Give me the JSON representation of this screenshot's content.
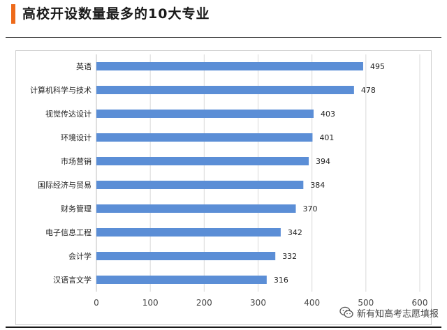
{
  "header": {
    "title": "高校开设数量最多的10大专业"
  },
  "watermark": {
    "icon": "wechat-icon",
    "text": "新有知高考志愿填报"
  },
  "colors": {
    "accent": "#ee6a1a",
    "bar": "#5b8ed6",
    "grid": "#d9d9d9"
  },
  "chart_data": {
    "type": "bar",
    "orientation": "horizontal",
    "title": "",
    "xlabel": "",
    "ylabel": "",
    "categories": [
      "英语",
      "计算机科学与技术",
      "视觉传达设计",
      "环境设计",
      "市场营销",
      "国际经济与贸易",
      "财务管理",
      "电子信息工程",
      "会计学",
      "汉语言文学"
    ],
    "values": [
      495,
      478,
      403,
      401,
      394,
      384,
      370,
      342,
      332,
      316
    ],
    "xlim": [
      0,
      600
    ],
    "xticks": [
      0,
      100,
      200,
      300,
      400,
      500,
      600
    ],
    "grid": true,
    "data_labels": true
  }
}
